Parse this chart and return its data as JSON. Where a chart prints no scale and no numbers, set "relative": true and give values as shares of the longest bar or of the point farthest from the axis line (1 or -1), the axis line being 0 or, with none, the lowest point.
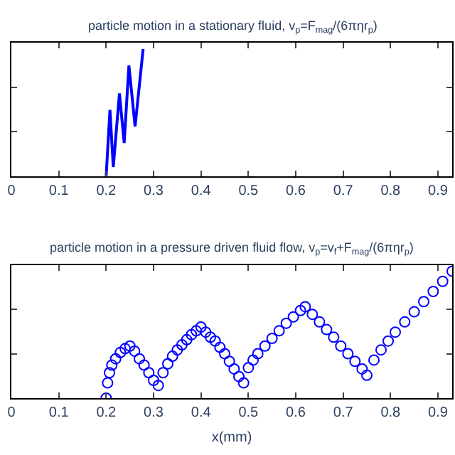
{
  "chart_data": [
    {
      "type": "line",
      "title": "particle motion in a stationary fluid, v$_{p}$=F$_{mag}$/(6πηr$_{p}$)",
      "relative": true,
      "xlim": [
        0,
        0.93
      ],
      "xticks": [
        0,
        0.1,
        0.2,
        0.3,
        0.4,
        0.5,
        0.6,
        0.7,
        0.8,
        0.9
      ],
      "marker": "none",
      "line_style": "solid",
      "series": [
        {
          "color": "#0000ff",
          "x": [
            0.2,
            0.208,
            0.215,
            0.228,
            0.238,
            0.248,
            0.261,
            0.278
          ],
          "values": [
            0,
            0.52,
            0.07,
            0.65,
            0.26,
            0.87,
            0.39,
            1.0
          ]
        }
      ]
    },
    {
      "type": "scatter",
      "title": "particle motion in a pressure driven fluid flow, v$_{p}$=v$_{f}$+F$_{mag}$/(6πηr$_{p}$)",
      "xlabel": "x(mm)",
      "relative": true,
      "xlim": [
        0,
        0.93
      ],
      "xticks": [
        0,
        0.1,
        0.2,
        0.3,
        0.4,
        0.5,
        0.6,
        0.7,
        0.8,
        0.9
      ],
      "marker": "circle",
      "series": [
        {
          "color": "#0000ff",
          "x": [
            0.2,
            0.203,
            0.207,
            0.212,
            0.22,
            0.23,
            0.24,
            0.25,
            0.26,
            0.27,
            0.28,
            0.29,
            0.3,
            0.31,
            0.32,
            0.33,
            0.34,
            0.35,
            0.36,
            0.37,
            0.38,
            0.39,
            0.4,
            0.41,
            0.42,
            0.43,
            0.44,
            0.45,
            0.46,
            0.47,
            0.48,
            0.49,
            0.5,
            0.51,
            0.52,
            0.535,
            0.55,
            0.565,
            0.58,
            0.595,
            0.61,
            0.62,
            0.635,
            0.65,
            0.665,
            0.68,
            0.695,
            0.71,
            0.725,
            0.74,
            0.75,
            0.765,
            0.78,
            0.795,
            0.81,
            0.83,
            0.85,
            0.87,
            0.89,
            0.91,
            0.93
          ],
          "values": [
            0,
            0.12,
            0.2,
            0.26,
            0.31,
            0.36,
            0.39,
            0.41,
            0.37,
            0.31,
            0.26,
            0.2,
            0.14,
            0.1,
            0.2,
            0.27,
            0.33,
            0.38,
            0.42,
            0.46,
            0.5,
            0.53,
            0.56,
            0.52,
            0.48,
            0.45,
            0.4,
            0.35,
            0.29,
            0.23,
            0.17,
            0.12,
            0.24,
            0.3,
            0.35,
            0.41,
            0.47,
            0.53,
            0.59,
            0.64,
            0.69,
            0.72,
            0.66,
            0.6,
            0.54,
            0.48,
            0.41,
            0.35,
            0.29,
            0.23,
            0.18,
            0.3,
            0.38,
            0.45,
            0.52,
            0.6,
            0.68,
            0.76,
            0.84,
            0.92,
            1.0
          ]
        }
      ]
    }
  ]
}
